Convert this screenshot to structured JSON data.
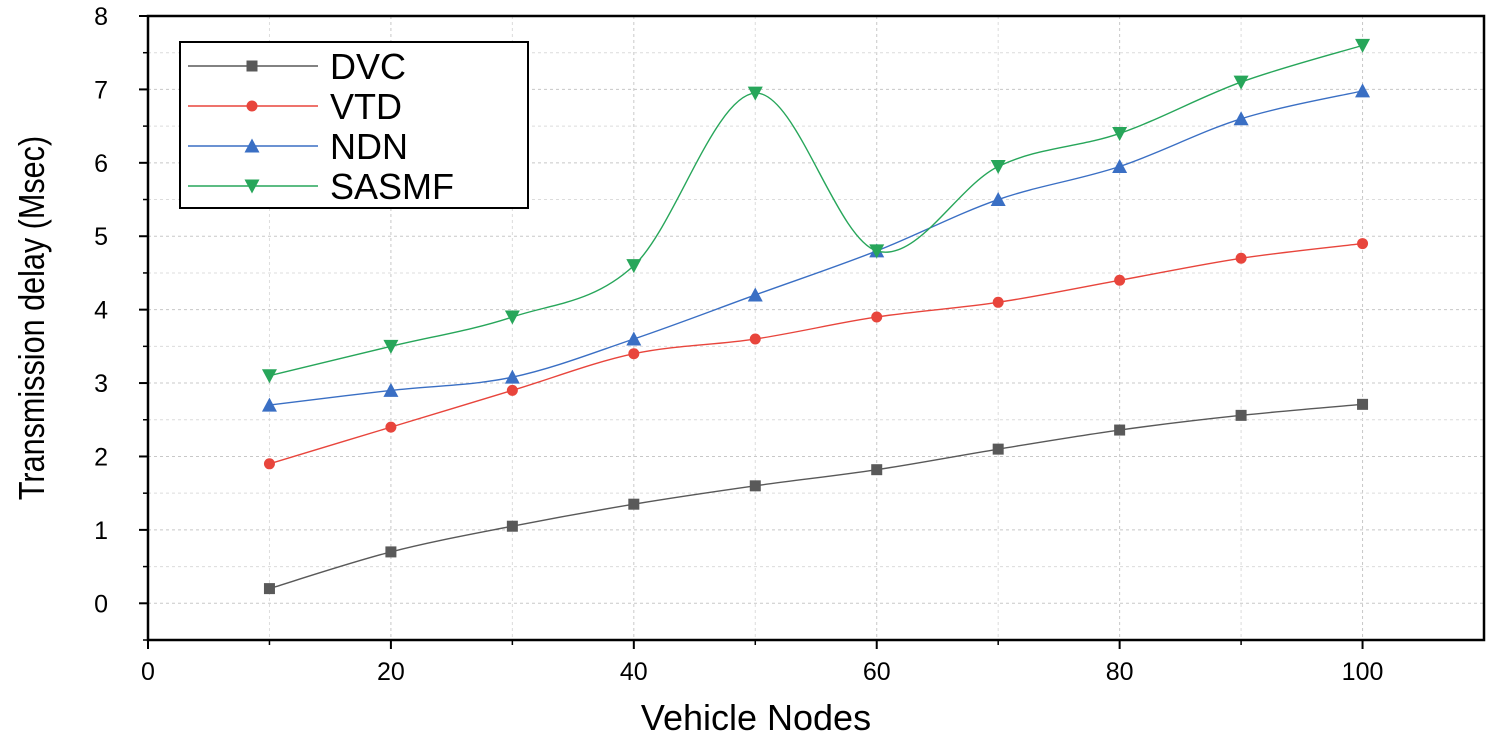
{
  "chart_data": {
    "type": "line",
    "title": "",
    "xlabel": "Vehicle Nodes",
    "ylabel": "Transmission delay (Msec)",
    "xlim": [
      0,
      110
    ],
    "ylim": [
      -0.5,
      8
    ],
    "x_ticks": [
      "0",
      "20",
      "40",
      "60",
      "80",
      "100"
    ],
    "y_ticks": [
      "0",
      "1",
      "2",
      "3",
      "4",
      "5",
      "6",
      "7",
      "8"
    ],
    "grid": true,
    "legend_position": "top-left",
    "x": [
      10,
      20,
      30,
      40,
      50,
      60,
      70,
      80,
      90,
      100
    ],
    "series": [
      {
        "name": "DVC",
        "color": "#595959",
        "marker": "square",
        "values": [
          0.2,
          0.7,
          1.05,
          1.35,
          1.6,
          1.82,
          2.1,
          2.36,
          2.56,
          2.71
        ]
      },
      {
        "name": "VTD",
        "color": "#e8453c",
        "marker": "circle",
        "values": [
          1.9,
          2.4,
          2.9,
          3.4,
          3.6,
          3.9,
          4.1,
          4.4,
          4.7,
          4.9
        ]
      },
      {
        "name": "NDN",
        "color": "#3a6fc4",
        "marker": "triangle-up",
        "values": [
          2.7,
          2.9,
          3.08,
          3.6,
          4.2,
          4.8,
          5.5,
          5.95,
          6.6,
          6.98
        ]
      },
      {
        "name": "SASMF",
        "color": "#27a65a",
        "marker": "triangle-down",
        "values": [
          3.1,
          3.5,
          3.9,
          4.6,
          6.95,
          4.8,
          5.95,
          6.4,
          7.1,
          7.6
        ]
      }
    ]
  }
}
